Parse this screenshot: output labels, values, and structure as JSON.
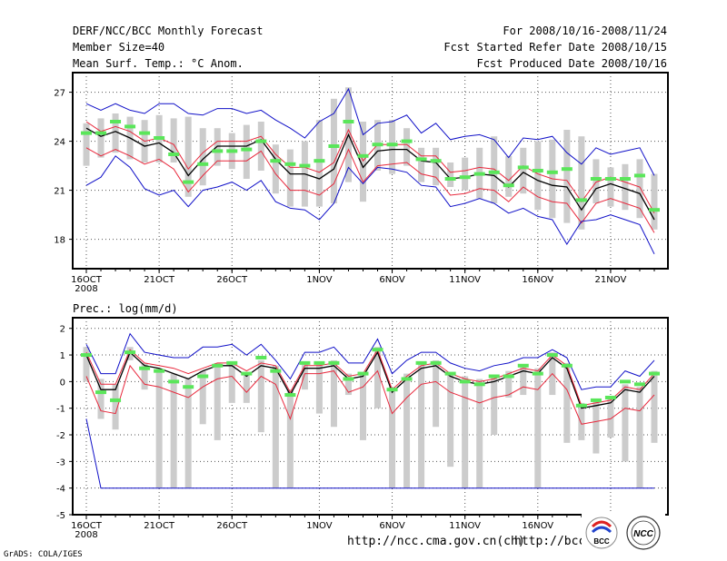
{
  "header": {
    "title": "DERF/NCC/BCC Monthly Forecast",
    "member": "Member Size=40",
    "var1": "Mean Surf. Temp.: °C Anom.",
    "period": "For 2008/10/16-2008/11/24",
    "started": "Fcst Started Refer Date 2008/10/15",
    "produced": "Fcst Produced Date 2008/10/16"
  },
  "panel2_label": "Prec.: log(mm/d)",
  "footer": {
    "left": "GrADS: COLA/IGES",
    "url1": "http://ncc.cma.gov.cn(ch)",
    "url2": "http://bcc.c",
    "logo1": "BCC",
    "logo2": "NCC"
  },
  "chart_data": [
    {
      "type": "line",
      "title": "Mean Surf. Temp.: °C Anom.",
      "ylim": [
        16.2,
        28.2
      ],
      "yticks": [
        18,
        21,
        24,
        27
      ],
      "xtick_labels": [
        {
          "day": 0,
          "label": "16OCT"
        },
        {
          "day": 5,
          "label": "21OCT"
        },
        {
          "day": 10,
          "label": "26OCT"
        },
        {
          "day": 16,
          "label": "1NOV"
        },
        {
          "day": 21,
          "label": "6NOV"
        },
        {
          "day": 26,
          "label": "11NOV"
        },
        {
          "day": 31,
          "label": "16NOV"
        },
        {
          "day": 36,
          "label": "21NOV"
        }
      ],
      "year_label": "2008",
      "days": [
        0,
        1,
        2,
        3,
        4,
        5,
        6,
        7,
        8,
        9,
        10,
        11,
        12,
        13,
        14,
        15,
        16,
        17,
        18,
        19,
        20,
        21,
        22,
        23,
        24,
        25,
        26,
        27,
        28,
        29,
        30,
        31,
        32,
        33,
        34,
        35,
        36,
        37,
        38,
        39
      ],
      "series": [
        {
          "name": "ensemble mean",
          "color": "#000000",
          "values": [
            24.8,
            24.3,
            24.6,
            24.2,
            23.7,
            23.9,
            23.3,
            21.9,
            22.9,
            23.7,
            23.7,
            23.7,
            24.1,
            22.9,
            22.0,
            22.0,
            21.7,
            22.3,
            24.4,
            22.4,
            23.4,
            23.5,
            23.5,
            22.8,
            22.7,
            21.7,
            21.8,
            22.0,
            21.9,
            21.2,
            22.1,
            21.6,
            21.3,
            21.2,
            19.8,
            21.1,
            21.4,
            21.1,
            20.8,
            19.2
          ]
        },
        {
          "name": "upper spread",
          "color": "#e8283c",
          "values": [
            25.2,
            24.6,
            24.9,
            24.6,
            24.0,
            24.2,
            23.8,
            22.3,
            23.3,
            24.0,
            24.0,
            24.0,
            24.3,
            23.2,
            22.4,
            22.4,
            22.1,
            22.7,
            24.7,
            22.8,
            23.8,
            23.8,
            23.8,
            23.1,
            23.1,
            22.1,
            22.2,
            22.4,
            22.3,
            21.6,
            22.5,
            22.0,
            21.7,
            21.6,
            20.3,
            21.5,
            21.8,
            21.5,
            21.2,
            19.6
          ]
        },
        {
          "name": "lower spread",
          "color": "#e8283c",
          "values": [
            23.6,
            23.1,
            23.5,
            23.1,
            22.6,
            22.9,
            22.3,
            20.9,
            21.9,
            22.8,
            22.8,
            22.8,
            23.4,
            22.0,
            21.0,
            21.0,
            20.7,
            21.4,
            23.5,
            21.5,
            22.5,
            22.6,
            22.7,
            22.0,
            21.8,
            20.7,
            20.8,
            21.1,
            21.0,
            20.3,
            21.2,
            20.6,
            20.3,
            20.2,
            19.0,
            20.2,
            20.5,
            20.2,
            19.9,
            18.4
          ]
        },
        {
          "name": "ensemble max",
          "color": "#1010c8",
          "values": [
            26.3,
            25.9,
            26.3,
            25.9,
            25.7,
            26.3,
            26.3,
            25.7,
            25.6,
            26.0,
            26.0,
            25.7,
            25.9,
            25.3,
            24.8,
            24.2,
            25.2,
            25.7,
            27.2,
            24.4,
            25.1,
            25.2,
            25.6,
            24.5,
            25.1,
            24.1,
            24.3,
            24.4,
            24.1,
            23.0,
            24.2,
            24.1,
            24.3,
            23.3,
            22.6,
            23.6,
            23.2,
            23.4,
            23.6,
            21.9
          ]
        },
        {
          "name": "ensemble min",
          "color": "#1010c8",
          "values": [
            21.3,
            21.8,
            23.1,
            22.4,
            21.1,
            20.7,
            21.0,
            20.0,
            21.0,
            21.2,
            21.5,
            21.0,
            21.6,
            20.3,
            19.9,
            19.8,
            19.2,
            20.2,
            22.4,
            21.4,
            22.4,
            22.3,
            22.1,
            21.3,
            21.2,
            20.0,
            20.2,
            20.5,
            20.2,
            19.6,
            19.9,
            19.4,
            19.2,
            17.7,
            19.1,
            19.2,
            19.5,
            19.2,
            18.9,
            17.1
          ]
        }
      ],
      "bars": {
        "name": "member range",
        "color": "#cccccc",
        "high": [
          25.1,
          25.4,
          25.7,
          25.5,
          25.3,
          25.6,
          25.4,
          25.5,
          24.8,
          24.8,
          24.5,
          25.0,
          25.2,
          23.8,
          23.5,
          24.0,
          25.3,
          26.6,
          27.3,
          25.2,
          25.3,
          25.3,
          24.8,
          23.6,
          23.6,
          22.7,
          23.0,
          23.6,
          24.3,
          23.1,
          23.6,
          24.0,
          24.1,
          24.7,
          24.3,
          22.9,
          22.4,
          22.6,
          22.9,
          22.0
        ],
        "low": [
          22.5,
          23.0,
          23.3,
          22.9,
          22.7,
          22.7,
          22.7,
          20.6,
          21.3,
          22.5,
          22.3,
          21.7,
          22.2,
          20.8,
          20.0,
          20.0,
          20.0,
          20.2,
          21.5,
          20.3,
          22.2,
          22.0,
          22.5,
          21.5,
          21.3,
          21.2,
          21.0,
          20.5,
          20.2,
          20.6,
          20.8,
          19.8,
          19.3,
          19.0,
          18.6,
          20.2,
          20.0,
          19.8,
          19.3,
          18.6
        ]
      },
      "markers": {
        "name": "observed",
        "color": "#5ae65a",
        "values": [
          24.5,
          24.5,
          25.2,
          24.9,
          24.5,
          24.2,
          23.2,
          21.5,
          22.6,
          23.4,
          23.4,
          23.5,
          24.0,
          22.8,
          22.6,
          22.5,
          22.8,
          23.7,
          25.2,
          23.1,
          23.8,
          23.8,
          24.0,
          22.9,
          22.8,
          21.7,
          21.8,
          22.0,
          22.1,
          21.3,
          22.4,
          22.2,
          22.1,
          22.3,
          20.4,
          21.7,
          21.7,
          21.7,
          21.9,
          19.8
        ]
      }
    },
    {
      "type": "line",
      "title": "Prec.: log(mm/d)",
      "ylim": [
        -5,
        2.4
      ],
      "yticks": [
        -5,
        -4,
        -3,
        -2,
        -1,
        0,
        1,
        2
      ],
      "xtick_labels": [
        {
          "day": 0,
          "label": "16OCT"
        },
        {
          "day": 5,
          "label": "21OCT"
        },
        {
          "day": 10,
          "label": "26OCT"
        },
        {
          "day": 16,
          "label": "1NOV"
        },
        {
          "day": 21,
          "label": "6NOV"
        },
        {
          "day": 26,
          "label": "11NOV"
        },
        {
          "day": 31,
          "label": "16NOV"
        },
        {
          "day": 36,
          "label": "21NOV"
        }
      ],
      "year_label": "2008",
      "days": [
        0,
        1,
        2,
        3,
        4,
        5,
        6,
        7,
        8,
        9,
        10,
        11,
        12,
        13,
        14,
        15,
        16,
        17,
        18,
        19,
        20,
        21,
        22,
        23,
        24,
        25,
        26,
        27,
        28,
        29,
        30,
        31,
        32,
        33,
        34,
        35,
        36,
        37,
        38,
        39
      ],
      "series": [
        {
          "name": "ensemble mean",
          "color": "#000000",
          "values": [
            1.0,
            -0.3,
            -0.3,
            1.1,
            0.6,
            0.5,
            0.3,
            0.1,
            0.4,
            0.6,
            0.6,
            0.2,
            0.6,
            0.5,
            -0.5,
            0.5,
            0.5,
            0.6,
            0.1,
            0.2,
            1.1,
            -0.4,
            0.1,
            0.5,
            0.6,
            0.2,
            0.0,
            -0.1,
            0.0,
            0.2,
            0.4,
            0.3,
            0.9,
            0.5,
            -1.0,
            -0.9,
            -0.8,
            -0.3,
            -0.4,
            0.2
          ]
        },
        {
          "name": "upper spread",
          "color": "#e8283c",
          "values": [
            1.1,
            -0.1,
            -0.1,
            1.2,
            0.7,
            0.6,
            0.5,
            0.3,
            0.5,
            0.7,
            0.7,
            0.4,
            0.7,
            0.6,
            -0.4,
            0.6,
            0.6,
            0.7,
            0.2,
            0.3,
            1.2,
            -0.3,
            0.2,
            0.6,
            0.7,
            0.3,
            0.1,
            0.0,
            0.1,
            0.3,
            0.5,
            0.4,
            1.0,
            0.6,
            -0.9,
            -0.8,
            -0.7,
            -0.2,
            -0.3,
            0.3
          ]
        },
        {
          "name": "lower spread",
          "color": "#e8283c",
          "values": [
            0.2,
            -1.1,
            -1.2,
            0.6,
            -0.1,
            -0.2,
            -0.4,
            -0.6,
            -0.2,
            0.1,
            0.2,
            -0.4,
            0.2,
            -0.1,
            -1.4,
            0.3,
            0.3,
            0.4,
            -0.4,
            -0.2,
            0.4,
            -1.2,
            -0.6,
            -0.1,
            0.0,
            -0.4,
            -0.6,
            -0.8,
            -0.6,
            -0.5,
            -0.2,
            -0.3,
            0.3,
            -0.3,
            -1.6,
            -1.5,
            -1.4,
            -1.0,
            -1.1,
            -0.5
          ]
        },
        {
          "name": "ensemble max",
          "color": "#1010c8",
          "values": [
            1.4,
            0.3,
            0.3,
            1.8,
            1.1,
            1.0,
            0.9,
            0.9,
            1.3,
            1.3,
            1.4,
            1.0,
            1.4,
            0.8,
            0.1,
            1.1,
            1.1,
            1.3,
            0.7,
            0.7,
            1.6,
            0.3,
            0.8,
            1.1,
            1.1,
            0.7,
            0.5,
            0.4,
            0.6,
            0.7,
            0.9,
            0.9,
            1.2,
            0.9,
            -0.3,
            -0.2,
            -0.2,
            0.4,
            0.2,
            0.8
          ]
        },
        {
          "name": "ensemble min",
          "color": "#1010c8",
          "values": [
            -1.4,
            -4.0,
            -4.0,
            -4.0,
            -4.0,
            -4.0,
            -4.0,
            -4.0,
            -4.0,
            -4.0,
            -4.0,
            -4.0,
            -4.0,
            -4.0,
            -4.0,
            -4.0,
            -4.0,
            -4.0,
            -4.0,
            -4.0,
            -4.0,
            -4.0,
            -4.0,
            -4.0,
            -4.0,
            -4.0,
            -4.0,
            -4.0,
            -4.0,
            -4.0,
            -4.0,
            -4.0,
            -4.0,
            -4.0,
            -4.0,
            -4.0,
            -4.0,
            -4.0,
            -4.0,
            -4.0
          ]
        }
      ],
      "bars": {
        "name": "member range",
        "color": "#cccccc",
        "high": [
          1.3,
          0.1,
          -0.1,
          1.3,
          0.7,
          0.5,
          0.3,
          0.1,
          0.4,
          0.7,
          0.7,
          0.3,
          0.8,
          0.6,
          -0.3,
          0.7,
          0.7,
          0.8,
          0.3,
          0.3,
          1.3,
          -0.2,
          0.3,
          0.7,
          0.8,
          0.3,
          0.2,
          0.1,
          0.2,
          0.4,
          0.6,
          0.5,
          1.1,
          0.7,
          -0.8,
          -0.7,
          -0.6,
          -0.1,
          -0.2,
          0.4
        ],
        "low": [
          0.0,
          -1.4,
          -1.8,
          0.8,
          -0.3,
          -4.0,
          -4.0,
          -4.0,
          -1.6,
          -2.2,
          -0.8,
          -0.8,
          -1.9,
          -4.0,
          -4.0,
          -0.3,
          -1.2,
          -1.7,
          -0.5,
          -2.2,
          -1.0,
          -4.0,
          -4.0,
          -4.0,
          -1.7,
          -3.2,
          -4.0,
          -4.0,
          -2.0,
          -0.6,
          -0.5,
          -4.0,
          -0.5,
          -2.3,
          -2.2,
          -2.7,
          -2.1,
          -3.0,
          -4.0,
          -2.3
        ]
      },
      "markers": {
        "name": "observed",
        "color": "#5ae65a",
        "values": [
          1.0,
          -0.4,
          -0.7,
          1.1,
          0.5,
          0.4,
          0.0,
          -0.2,
          0.2,
          0.6,
          0.7,
          0.3,
          0.9,
          0.4,
          -0.5,
          0.7,
          0.7,
          0.7,
          0.1,
          0.3,
          1.2,
          -0.3,
          0.1,
          0.7,
          0.7,
          0.3,
          0.0,
          -0.1,
          0.2,
          0.2,
          0.6,
          0.3,
          1.0,
          0.6,
          -0.9,
          -0.7,
          -0.6,
          0.0,
          -0.1,
          0.3
        ]
      }
    }
  ]
}
